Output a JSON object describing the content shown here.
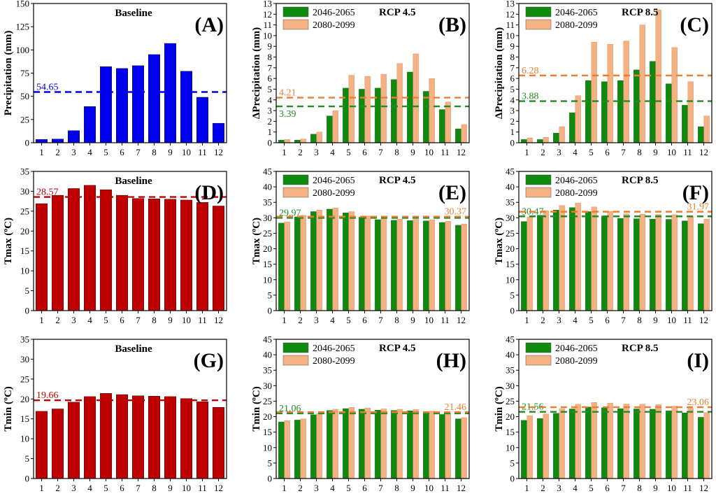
{
  "colors": {
    "baseline_precip": "#0000ee",
    "baseline_temp": "#c00000",
    "mid": "#0f8a0f",
    "far": "#f4b183",
    "far_line": "#ed7d31",
    "mid_line": "#228b22",
    "blue_line": "#0000ee",
    "red_line": "#c00000"
  },
  "chart_data": [
    {
      "id": "A",
      "type": "bar",
      "panel_label": "(A)",
      "title": "Baseline",
      "ylabel": "Precipitation (mm)",
      "ylim": [
        0,
        150
      ],
      "yticks": [
        0,
        25,
        50,
        75,
        100,
        125,
        150
      ],
      "categories": [
        "1",
        "2",
        "3",
        "4",
        "5",
        "6",
        "7",
        "8",
        "9",
        "10",
        "11",
        "12"
      ],
      "series": [
        {
          "name": "Baseline",
          "values": [
            3.5,
            4,
            13,
            39,
            82,
            80,
            83,
            95,
            107,
            77,
            49,
            21
          ]
        }
      ],
      "mean_lines": [
        {
          "value": 54.65,
          "label": "54.65",
          "label_side": "left",
          "color": "blue"
        }
      ]
    },
    {
      "id": "B",
      "type": "bar",
      "panel_label": "(B)",
      "title": "RCP 4.5",
      "ylabel": "ΔPrecipitation (mm)",
      "ylim": [
        0,
        13
      ],
      "yticks": [
        0,
        1,
        2,
        3,
        4,
        5,
        6,
        7,
        8,
        9,
        10,
        11,
        12,
        13
      ],
      "categories": [
        "1",
        "2",
        "3",
        "4",
        "5",
        "6",
        "7",
        "8",
        "9",
        "10",
        "11",
        "12"
      ],
      "series": [
        {
          "name": "2046-2065",
          "values": [
            0.25,
            0.25,
            0.8,
            2.5,
            5.1,
            5.0,
            5.1,
            5.9,
            6.6,
            4.8,
            3.1,
            1.3
          ]
        },
        {
          "name": "2080-2099",
          "values": [
            0.3,
            0.35,
            1.0,
            3.0,
            6.3,
            6.2,
            6.4,
            7.4,
            8.3,
            6.0,
            3.8,
            1.7
          ]
        }
      ],
      "mean_lines": [
        {
          "value": 4.21,
          "label": "4.21",
          "label_side": "left",
          "color": "orange"
        },
        {
          "value": 3.39,
          "label": "3.39",
          "label_side": "left",
          "color": "green",
          "label_below": true
        }
      ]
    },
    {
      "id": "C",
      "type": "bar",
      "panel_label": "(C)",
      "title": "RCP 8.5",
      "ylabel": "ΔPrecipitation (mm)",
      "ylim": [
        0,
        13
      ],
      "yticks": [
        0,
        1,
        2,
        3,
        4,
        5,
        6,
        7,
        8,
        9,
        10,
        11,
        12,
        13
      ],
      "categories": [
        "1",
        "2",
        "3",
        "4",
        "5",
        "6",
        "7",
        "8",
        "9",
        "10",
        "11",
        "12"
      ],
      "series": [
        {
          "name": "2046-2065",
          "values": [
            0.3,
            0.3,
            0.9,
            2.8,
            5.8,
            5.7,
            5.8,
            6.8,
            7.6,
            5.5,
            3.5,
            1.5
          ]
        },
        {
          "name": "2080-2099",
          "values": [
            0.45,
            0.5,
            1.5,
            4.4,
            9.4,
            9.2,
            9.5,
            11.0,
            12.4,
            8.9,
            5.7,
            2.5
          ]
        }
      ],
      "mean_lines": [
        {
          "value": 6.28,
          "label": "6.28",
          "label_side": "left",
          "color": "orange"
        },
        {
          "value": 3.88,
          "label": "3.88",
          "label_side": "left",
          "color": "green"
        }
      ]
    },
    {
      "id": "D",
      "type": "bar",
      "panel_label": "(D)",
      "title": "Baseline",
      "ylabel": "Tmax (ºC)",
      "ylim": [
        0,
        35
      ],
      "yticks": [
        0,
        5,
        10,
        15,
        20,
        25,
        30,
        35
      ],
      "categories": [
        "1",
        "2",
        "3",
        "4",
        "5",
        "6",
        "7",
        "8",
        "9",
        "10",
        "11",
        "12"
      ],
      "series": [
        {
          "name": "Baseline",
          "values": [
            26.9,
            29.0,
            30.7,
            31.5,
            30.4,
            29.0,
            28.2,
            28.1,
            28.0,
            27.8,
            27.2,
            26.3
          ]
        }
      ],
      "mean_lines": [
        {
          "value": 28.57,
          "label": "28.57",
          "label_side": "left",
          "color": "red"
        }
      ]
    },
    {
      "id": "E",
      "type": "bar",
      "panel_label": "(E)",
      "title": "RCP 4.5",
      "ylabel": "Tmax (ºC)",
      "ylim": [
        0,
        45
      ],
      "yticks": [
        0,
        5,
        10,
        15,
        20,
        25,
        30,
        35,
        40,
        45
      ],
      "categories": [
        "1",
        "2",
        "3",
        "4",
        "5",
        "6",
        "7",
        "8",
        "9",
        "10",
        "11",
        "12"
      ],
      "series": [
        {
          "name": "2046-2065",
          "values": [
            28.3,
            30.3,
            32.0,
            32.8,
            31.6,
            30.2,
            29.4,
            29.2,
            29.1,
            29.0,
            28.5,
            27.6
          ]
        },
        {
          "name": "2080-2099",
          "values": [
            28.7,
            30.8,
            32.5,
            33.2,
            32.0,
            30.6,
            29.8,
            29.6,
            29.5,
            29.4,
            28.9,
            28.0
          ]
        }
      ],
      "mean_lines": [
        {
          "value": 29.97,
          "label": "29.97",
          "label_side": "left",
          "color": "green"
        },
        {
          "value": 30.37,
          "label": "30.37",
          "label_side": "right",
          "color": "orange"
        }
      ]
    },
    {
      "id": "F",
      "type": "bar",
      "panel_label": "(F)",
      "title": "RCP 8.5",
      "ylabel": "Tmax (ºC)",
      "ylim": [
        0,
        45
      ],
      "yticks": [
        0,
        5,
        10,
        15,
        20,
        25,
        30,
        35,
        40,
        45
      ],
      "categories": [
        "1",
        "2",
        "3",
        "4",
        "5",
        "6",
        "7",
        "8",
        "9",
        "10",
        "11",
        "12"
      ],
      "series": [
        {
          "name": "2046-2065",
          "values": [
            28.8,
            30.8,
            32.5,
            33.3,
            32.0,
            30.6,
            29.8,
            29.7,
            29.6,
            29.5,
            29.0,
            28.1
          ]
        },
        {
          "name": "2080-2099",
          "values": [
            30.3,
            32.3,
            34.0,
            34.8,
            33.5,
            32.1,
            31.3,
            31.2,
            31.1,
            31.0,
            30.5,
            29.6
          ]
        }
      ],
      "mean_lines": [
        {
          "value": 30.47,
          "label": "30.47",
          "label_side": "left",
          "color": "green"
        },
        {
          "value": 31.97,
          "label": "31.97",
          "label_side": "right",
          "color": "orange"
        }
      ]
    },
    {
      "id": "G",
      "type": "bar",
      "panel_label": "(G)",
      "title": "Baseline",
      "ylabel": "Tmin (ºC)",
      "ylim": [
        0,
        35
      ],
      "yticks": [
        0,
        5,
        10,
        15,
        20,
        25,
        30,
        35
      ],
      "categories": [
        "1",
        "2",
        "3",
        "4",
        "5",
        "6",
        "7",
        "8",
        "9",
        "10",
        "11",
        "12"
      ],
      "series": [
        {
          "name": "Baseline",
          "values": [
            16.9,
            17.5,
            19.2,
            20.6,
            21.4,
            21.1,
            20.8,
            20.7,
            20.6,
            20.1,
            19.3,
            17.9
          ]
        }
      ],
      "mean_lines": [
        {
          "value": 19.66,
          "label": "19.66",
          "label_side": "left",
          "color": "red"
        }
      ]
    },
    {
      "id": "H",
      "type": "bar",
      "panel_label": "(H)",
      "title": "RCP 4.5",
      "ylabel": "Tmin (ºC)",
      "ylim": [
        0,
        45
      ],
      "yticks": [
        0,
        5,
        10,
        15,
        20,
        25,
        30,
        35,
        40,
        45
      ],
      "categories": [
        "1",
        "2",
        "3",
        "4",
        "5",
        "6",
        "7",
        "8",
        "9",
        "10",
        "11",
        "12"
      ],
      "series": [
        {
          "name": "2046-2065",
          "values": [
            18.3,
            18.9,
            20.6,
            22.0,
            22.6,
            22.4,
            22.1,
            22.0,
            21.9,
            21.4,
            20.7,
            19.3
          ]
        },
        {
          "name": "2080-2099",
          "values": [
            18.7,
            19.3,
            21.0,
            22.4,
            23.0,
            22.8,
            22.5,
            22.4,
            22.3,
            21.8,
            21.1,
            19.7
          ]
        }
      ],
      "mean_lines": [
        {
          "value": 21.06,
          "label": "21.06",
          "label_side": "left",
          "color": "green"
        },
        {
          "value": 21.46,
          "label": "21.46",
          "label_side": "right",
          "color": "orange"
        }
      ]
    },
    {
      "id": "I",
      "type": "bar",
      "panel_label": "(I)",
      "title": "RCP 8.5",
      "ylabel": "Tmin (ºC)",
      "ylim": [
        0,
        45
      ],
      "yticks": [
        0,
        5,
        10,
        15,
        20,
        25,
        30,
        35,
        40,
        45
      ],
      "categories": [
        "1",
        "2",
        "3",
        "4",
        "5",
        "6",
        "7",
        "8",
        "9",
        "10",
        "11",
        "12"
      ],
      "series": [
        {
          "name": "2046-2065",
          "values": [
            18.8,
            19.4,
            21.1,
            22.5,
            23.1,
            22.9,
            22.6,
            22.5,
            22.4,
            21.9,
            21.2,
            19.8
          ]
        },
        {
          "name": "2080-2099",
          "values": [
            20.3,
            20.9,
            22.6,
            24.0,
            24.6,
            24.4,
            24.1,
            24.0,
            23.9,
            23.4,
            22.7,
            21.3
          ]
        }
      ],
      "mean_lines": [
        {
          "value": 21.56,
          "label": "21.56",
          "label_side": "left",
          "color": "green"
        },
        {
          "value": 23.06,
          "label": "23.06",
          "label_side": "right",
          "color": "orange"
        }
      ]
    }
  ]
}
